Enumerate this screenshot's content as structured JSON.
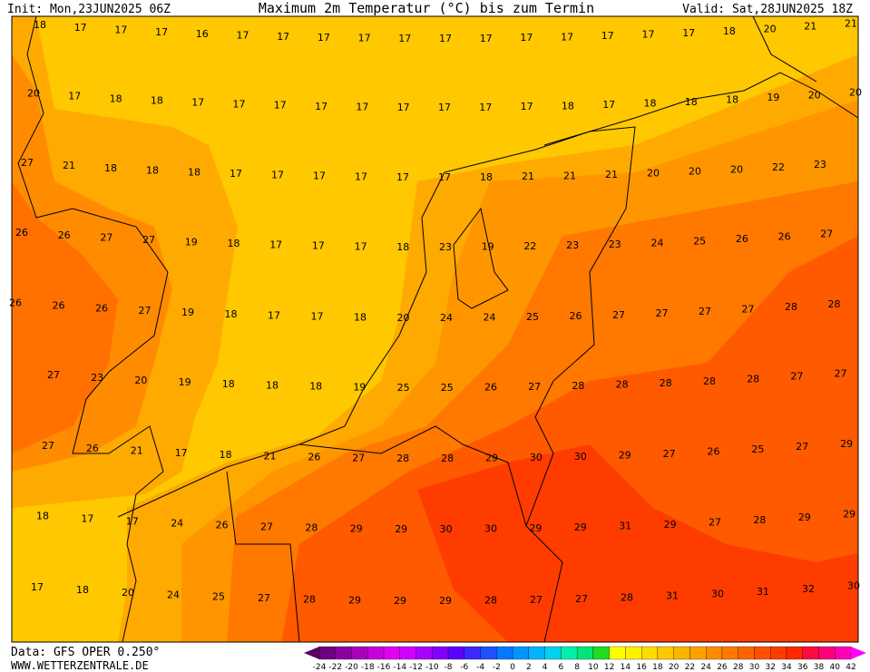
{
  "header": {
    "init": "Init: Mon,23JUN2025 06Z",
    "title": "Maximum 2m Temperatur (°C) bis zum Termin",
    "valid": "Valid: Sat,28JUN2025 18Z"
  },
  "map": {
    "rows": [
      [
        18,
        17,
        17,
        17,
        16,
        17,
        17,
        17,
        17,
        17,
        17,
        17,
        17,
        17,
        17,
        17,
        17,
        18,
        20,
        21,
        21
      ],
      [
        20,
        17,
        18,
        18,
        17,
        17,
        17,
        17,
        17,
        17,
        17,
        17,
        17,
        18,
        17,
        18,
        18,
        18,
        19,
        20,
        20
      ],
      [
        27,
        21,
        18,
        18,
        18,
        17,
        17,
        17,
        17,
        17,
        17,
        18,
        21,
        21,
        21,
        20,
        20,
        20,
        22,
        23
      ],
      [
        26,
        26,
        27,
        27,
        19,
        18,
        17,
        17,
        17,
        18,
        23,
        19,
        22,
        23,
        23,
        24,
        25,
        26,
        26,
        27
      ],
      [
        26,
        26,
        26,
        27,
        19,
        18,
        17,
        17,
        18,
        20,
        24,
        24,
        25,
        26,
        27,
        27,
        27,
        27,
        28,
        28
      ],
      [
        27,
        23,
        20,
        19,
        18,
        18,
        18,
        19,
        25,
        25,
        26,
        27,
        28,
        28,
        28,
        28,
        28,
        27,
        27
      ],
      [
        27,
        26,
        21,
        17,
        18,
        21,
        26,
        27,
        28,
        28,
        29,
        30,
        30,
        29,
        27,
        26,
        25,
        27,
        29
      ],
      [
        18,
        17,
        17,
        24,
        26,
        27,
        28,
        29,
        29,
        30,
        30,
        29,
        29,
        31,
        29,
        27,
        28,
        29,
        29
      ],
      [
        17,
        18,
        20,
        24,
        25,
        27,
        28,
        29,
        29,
        29,
        28,
        27,
        27,
        28,
        31,
        30,
        31,
        32,
        30
      ]
    ]
  },
  "legend": {
    "labels": [
      -24,
      -22,
      -20,
      -18,
      -16,
      -14,
      -12,
      -10,
      -8,
      -6,
      -4,
      -2,
      0,
      2,
      4,
      6,
      8,
      10,
      12,
      14,
      16,
      18,
      20,
      22,
      24,
      26,
      28,
      30,
      32,
      34,
      36,
      38,
      40,
      42
    ],
    "colors": [
      "#5a0064",
      "#6e0082",
      "#8c00a0",
      "#aa00be",
      "#c800dc",
      "#e100f0",
      "#d200ff",
      "#aa00ff",
      "#8200ff",
      "#5a00ff",
      "#3c28ff",
      "#1e50ff",
      "#0078ff",
      "#0096ff",
      "#00b4ff",
      "#00d2f0",
      "#00f0aa",
      "#00e678",
      "#1edc1e",
      "#ffff00",
      "#fff000",
      "#ffdc00",
      "#ffc800",
      "#ffb400",
      "#ffa000",
      "#ff8c00",
      "#ff7800",
      "#ff6400",
      "#ff5000",
      "#ff3c00",
      "#ff2800",
      "#ff0a3c",
      "#ff0078",
      "#ff00b4",
      "#ff00ff"
    ]
  },
  "footer": {
    "data": "Data: GFS OPER 0.250°",
    "site": "WWW.WETTERZENTRALE.DE"
  }
}
